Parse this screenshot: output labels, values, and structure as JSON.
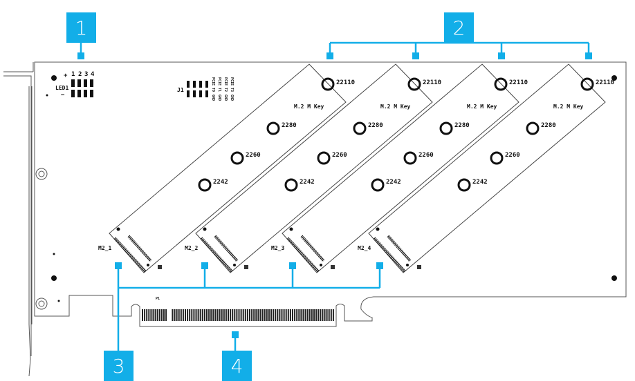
{
  "callouts": [
    "1",
    "2",
    "3",
    "4"
  ],
  "led": {
    "label": "LED1",
    "plus": "+",
    "minus": "−",
    "pins": [
      "1",
      "2",
      "3",
      "4"
    ]
  },
  "header": {
    "label": "J1",
    "signals": [
      "PCIE T0",
      "PCIE T1",
      "PCIE T2",
      "PCIE T3"
    ],
    "ground": "GND"
  },
  "slots": [
    {
      "label": "M2_1",
      "key": "M.2 M Key",
      "sizes": [
        "22110",
        "2280",
        "2260",
        "2242"
      ]
    },
    {
      "label": "M2_2",
      "key": "M.2 M Key",
      "sizes": [
        "22110",
        "2280",
        "2260",
        "2242"
      ]
    },
    {
      "label": "M2_3",
      "key": "M.2 M Key",
      "sizes": [
        "22110",
        "2280",
        "2260",
        "2242"
      ]
    },
    {
      "label": "M2_4",
      "key": "M.2 M Key",
      "sizes": [
        "22110",
        "2280",
        "2260",
        "2242"
      ]
    }
  ],
  "edge_connector_label": "P1",
  "colors": {
    "callout": "#12aee8",
    "outline": "#333333"
  }
}
